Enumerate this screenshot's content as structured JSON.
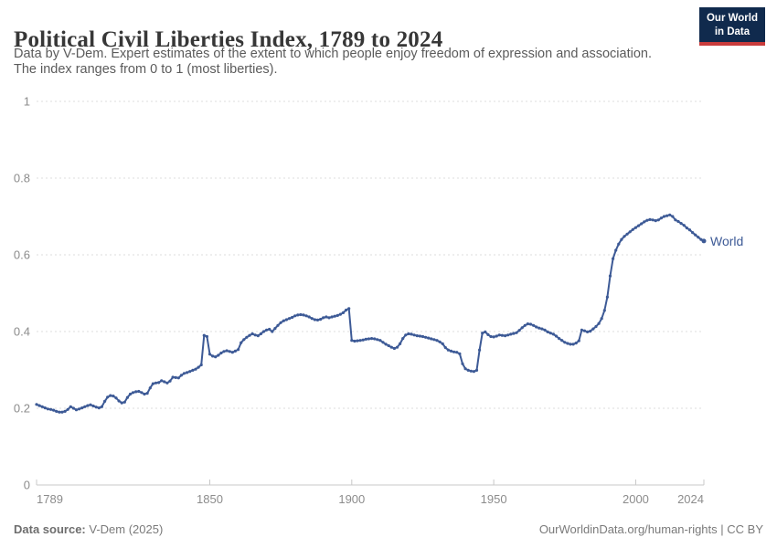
{
  "header": {
    "title": "Political Civil Liberties Index, 1789 to 2024",
    "subtitle_line1": "Data by V-Dem. Expert estimates of the extent to which people enjoy freedom of expression and association.",
    "subtitle_line2": "The index ranges from 0 to 1 (most liberties).",
    "logo": {
      "line1": "Our World",
      "line2": "in Data",
      "bg_color": "#102a4d",
      "accent_color": "#c93c3c"
    }
  },
  "footer": {
    "source_label": "Data source:",
    "source_value": "V-Dem (2025)",
    "url_text": "OurWorldinData.org/human-rights",
    "separator": " | ",
    "license": "CC BY"
  },
  "chart_data": {
    "type": "line",
    "title": "Political Civil Liberties Index, 1789 to 2024",
    "xlabel": "",
    "ylabel": "",
    "xlim": [
      1789,
      2024
    ],
    "ylim": [
      0,
      1
    ],
    "yticks": [
      0,
      0.2,
      0.4,
      0.6,
      0.8,
      1
    ],
    "ytick_labels": [
      "0",
      "0.2",
      "0.4",
      "0.6",
      "0.8",
      "1"
    ],
    "xticks": [
      1789,
      1850,
      1900,
      1950,
      2000,
      2024
    ],
    "xtick_labels": [
      "1789",
      "1850",
      "1900",
      "1950",
      "2000",
      "2024"
    ],
    "grid": "horizontal-dashed",
    "grid_color": "#dcdcdc",
    "axis_color": "#c8c8c8",
    "tick_label_color": "#8c8c8c",
    "legend_position": "end-of-line label",
    "series": [
      {
        "name": "World",
        "color": "#3d5a96",
        "points": [
          [
            1789,
            0.21
          ],
          [
            1790,
            0.207
          ],
          [
            1791,
            0.204
          ],
          [
            1792,
            0.201
          ],
          [
            1793,
            0.198
          ],
          [
            1794,
            0.197
          ],
          [
            1795,
            0.195
          ],
          [
            1796,
            0.192
          ],
          [
            1797,
            0.19
          ],
          [
            1798,
            0.19
          ],
          [
            1799,
            0.192
          ],
          [
            1800,
            0.197
          ],
          [
            1801,
            0.204
          ],
          [
            1802,
            0.2
          ],
          [
            1803,
            0.196
          ],
          [
            1804,
            0.198
          ],
          [
            1805,
            0.201
          ],
          [
            1806,
            0.204
          ],
          [
            1807,
            0.207
          ],
          [
            1808,
            0.209
          ],
          [
            1809,
            0.206
          ],
          [
            1810,
            0.203
          ],
          [
            1811,
            0.201
          ],
          [
            1812,
            0.204
          ],
          [
            1813,
            0.218
          ],
          [
            1814,
            0.229
          ],
          [
            1815,
            0.233
          ],
          [
            1816,
            0.232
          ],
          [
            1817,
            0.227
          ],
          [
            1818,
            0.219
          ],
          [
            1819,
            0.214
          ],
          [
            1820,
            0.216
          ],
          [
            1821,
            0.228
          ],
          [
            1822,
            0.237
          ],
          [
            1823,
            0.241
          ],
          [
            1824,
            0.243
          ],
          [
            1825,
            0.244
          ],
          [
            1826,
            0.241
          ],
          [
            1827,
            0.237
          ],
          [
            1828,
            0.239
          ],
          [
            1829,
            0.253
          ],
          [
            1830,
            0.264
          ],
          [
            1831,
            0.266
          ],
          [
            1832,
            0.267
          ],
          [
            1833,
            0.272
          ],
          [
            1834,
            0.269
          ],
          [
            1835,
            0.266
          ],
          [
            1836,
            0.271
          ],
          [
            1837,
            0.281
          ],
          [
            1838,
            0.28
          ],
          [
            1839,
            0.279
          ],
          [
            1840,
            0.286
          ],
          [
            1841,
            0.291
          ],
          [
            1842,
            0.293
          ],
          [
            1843,
            0.296
          ],
          [
            1844,
            0.299
          ],
          [
            1845,
            0.302
          ],
          [
            1846,
            0.307
          ],
          [
            1847,
            0.313
          ],
          [
            1848,
            0.39
          ],
          [
            1849,
            0.387
          ],
          [
            1850,
            0.341
          ],
          [
            1851,
            0.336
          ],
          [
            1852,
            0.334
          ],
          [
            1853,
            0.338
          ],
          [
            1854,
            0.344
          ],
          [
            1855,
            0.348
          ],
          [
            1856,
            0.35
          ],
          [
            1857,
            0.348
          ],
          [
            1858,
            0.346
          ],
          [
            1859,
            0.349
          ],
          [
            1860,
            0.353
          ],
          [
            1861,
            0.371
          ],
          [
            1862,
            0.379
          ],
          [
            1863,
            0.385
          ],
          [
            1864,
            0.39
          ],
          [
            1865,
            0.394
          ],
          [
            1866,
            0.391
          ],
          [
            1867,
            0.389
          ],
          [
            1868,
            0.394
          ],
          [
            1869,
            0.4
          ],
          [
            1870,
            0.404
          ],
          [
            1871,
            0.406
          ],
          [
            1872,
            0.4
          ],
          [
            1873,
            0.408
          ],
          [
            1874,
            0.416
          ],
          [
            1875,
            0.423
          ],
          [
            1876,
            0.428
          ],
          [
            1877,
            0.431
          ],
          [
            1878,
            0.434
          ],
          [
            1879,
            0.437
          ],
          [
            1880,
            0.441
          ],
          [
            1881,
            0.443
          ],
          [
            1882,
            0.444
          ],
          [
            1883,
            0.443
          ],
          [
            1884,
            0.441
          ],
          [
            1885,
            0.438
          ],
          [
            1886,
            0.434
          ],
          [
            1887,
            0.431
          ],
          [
            1888,
            0.43
          ],
          [
            1889,
            0.432
          ],
          [
            1890,
            0.436
          ],
          [
            1891,
            0.438
          ],
          [
            1892,
            0.436
          ],
          [
            1893,
            0.438
          ],
          [
            1894,
            0.44
          ],
          [
            1895,
            0.442
          ],
          [
            1896,
            0.445
          ],
          [
            1897,
            0.449
          ],
          [
            1898,
            0.456
          ],
          [
            1899,
            0.46
          ],
          [
            1900,
            0.377
          ],
          [
            1901,
            0.375
          ],
          [
            1902,
            0.376
          ],
          [
            1903,
            0.377
          ],
          [
            1904,
            0.378
          ],
          [
            1905,
            0.38
          ],
          [
            1906,
            0.381
          ],
          [
            1907,
            0.382
          ],
          [
            1908,
            0.381
          ],
          [
            1909,
            0.379
          ],
          [
            1910,
            0.377
          ],
          [
            1911,
            0.372
          ],
          [
            1912,
            0.367
          ],
          [
            1913,
            0.363
          ],
          [
            1914,
            0.359
          ],
          [
            1915,
            0.356
          ],
          [
            1916,
            0.359
          ],
          [
            1917,
            0.368
          ],
          [
            1918,
            0.382
          ],
          [
            1919,
            0.391
          ],
          [
            1920,
            0.394
          ],
          [
            1921,
            0.393
          ],
          [
            1922,
            0.391
          ],
          [
            1923,
            0.389
          ],
          [
            1924,
            0.388
          ],
          [
            1925,
            0.387
          ],
          [
            1926,
            0.385
          ],
          [
            1927,
            0.383
          ],
          [
            1928,
            0.381
          ],
          [
            1929,
            0.379
          ],
          [
            1930,
            0.377
          ],
          [
            1931,
            0.373
          ],
          [
            1932,
            0.368
          ],
          [
            1933,
            0.358
          ],
          [
            1934,
            0.352
          ],
          [
            1935,
            0.349
          ],
          [
            1936,
            0.347
          ],
          [
            1937,
            0.346
          ],
          [
            1938,
            0.342
          ],
          [
            1939,
            0.316
          ],
          [
            1940,
            0.303
          ],
          [
            1941,
            0.299
          ],
          [
            1942,
            0.297
          ],
          [
            1943,
            0.296
          ],
          [
            1944,
            0.299
          ],
          [
            1945,
            0.352
          ],
          [
            1946,
            0.396
          ],
          [
            1947,
            0.399
          ],
          [
            1948,
            0.392
          ],
          [
            1949,
            0.387
          ],
          [
            1950,
            0.386
          ],
          [
            1951,
            0.388
          ],
          [
            1952,
            0.391
          ],
          [
            1953,
            0.39
          ],
          [
            1954,
            0.389
          ],
          [
            1955,
            0.391
          ],
          [
            1956,
            0.393
          ],
          [
            1957,
            0.395
          ],
          [
            1958,
            0.397
          ],
          [
            1959,
            0.403
          ],
          [
            1960,
            0.41
          ],
          [
            1961,
            0.416
          ],
          [
            1962,
            0.42
          ],
          [
            1963,
            0.419
          ],
          [
            1964,
            0.416
          ],
          [
            1965,
            0.412
          ],
          [
            1966,
            0.409
          ],
          [
            1967,
            0.407
          ],
          [
            1968,
            0.404
          ],
          [
            1969,
            0.399
          ],
          [
            1970,
            0.396
          ],
          [
            1971,
            0.393
          ],
          [
            1972,
            0.388
          ],
          [
            1973,
            0.382
          ],
          [
            1974,
            0.377
          ],
          [
            1975,
            0.372
          ],
          [
            1976,
            0.369
          ],
          [
            1977,
            0.367
          ],
          [
            1978,
            0.367
          ],
          [
            1979,
            0.37
          ],
          [
            1980,
            0.376
          ],
          [
            1981,
            0.404
          ],
          [
            1982,
            0.402
          ],
          [
            1983,
            0.399
          ],
          [
            1984,
            0.401
          ],
          [
            1985,
            0.407
          ],
          [
            1986,
            0.413
          ],
          [
            1987,
            0.421
          ],
          [
            1988,
            0.434
          ],
          [
            1989,
            0.455
          ],
          [
            1990,
            0.49
          ],
          [
            1991,
            0.545
          ],
          [
            1992,
            0.59
          ],
          [
            1993,
            0.612
          ],
          [
            1994,
            0.628
          ],
          [
            1995,
            0.64
          ],
          [
            1996,
            0.648
          ],
          [
            1997,
            0.654
          ],
          [
            1998,
            0.66
          ],
          [
            1999,
            0.666
          ],
          [
            2000,
            0.671
          ],
          [
            2001,
            0.676
          ],
          [
            2002,
            0.681
          ],
          [
            2003,
            0.686
          ],
          [
            2004,
            0.69
          ],
          [
            2005,
            0.692
          ],
          [
            2006,
            0.691
          ],
          [
            2007,
            0.689
          ],
          [
            2008,
            0.691
          ],
          [
            2009,
            0.696
          ],
          [
            2010,
            0.7
          ],
          [
            2011,
            0.702
          ],
          [
            2012,
            0.704
          ],
          [
            2013,
            0.7
          ],
          [
            2014,
            0.691
          ],
          [
            2015,
            0.687
          ],
          [
            2016,
            0.682
          ],
          [
            2017,
            0.677
          ],
          [
            2018,
            0.67
          ],
          [
            2019,
            0.665
          ],
          [
            2020,
            0.658
          ],
          [
            2021,
            0.652
          ],
          [
            2022,
            0.646
          ],
          [
            2023,
            0.64
          ],
          [
            2024,
            0.636
          ]
        ]
      }
    ]
  }
}
